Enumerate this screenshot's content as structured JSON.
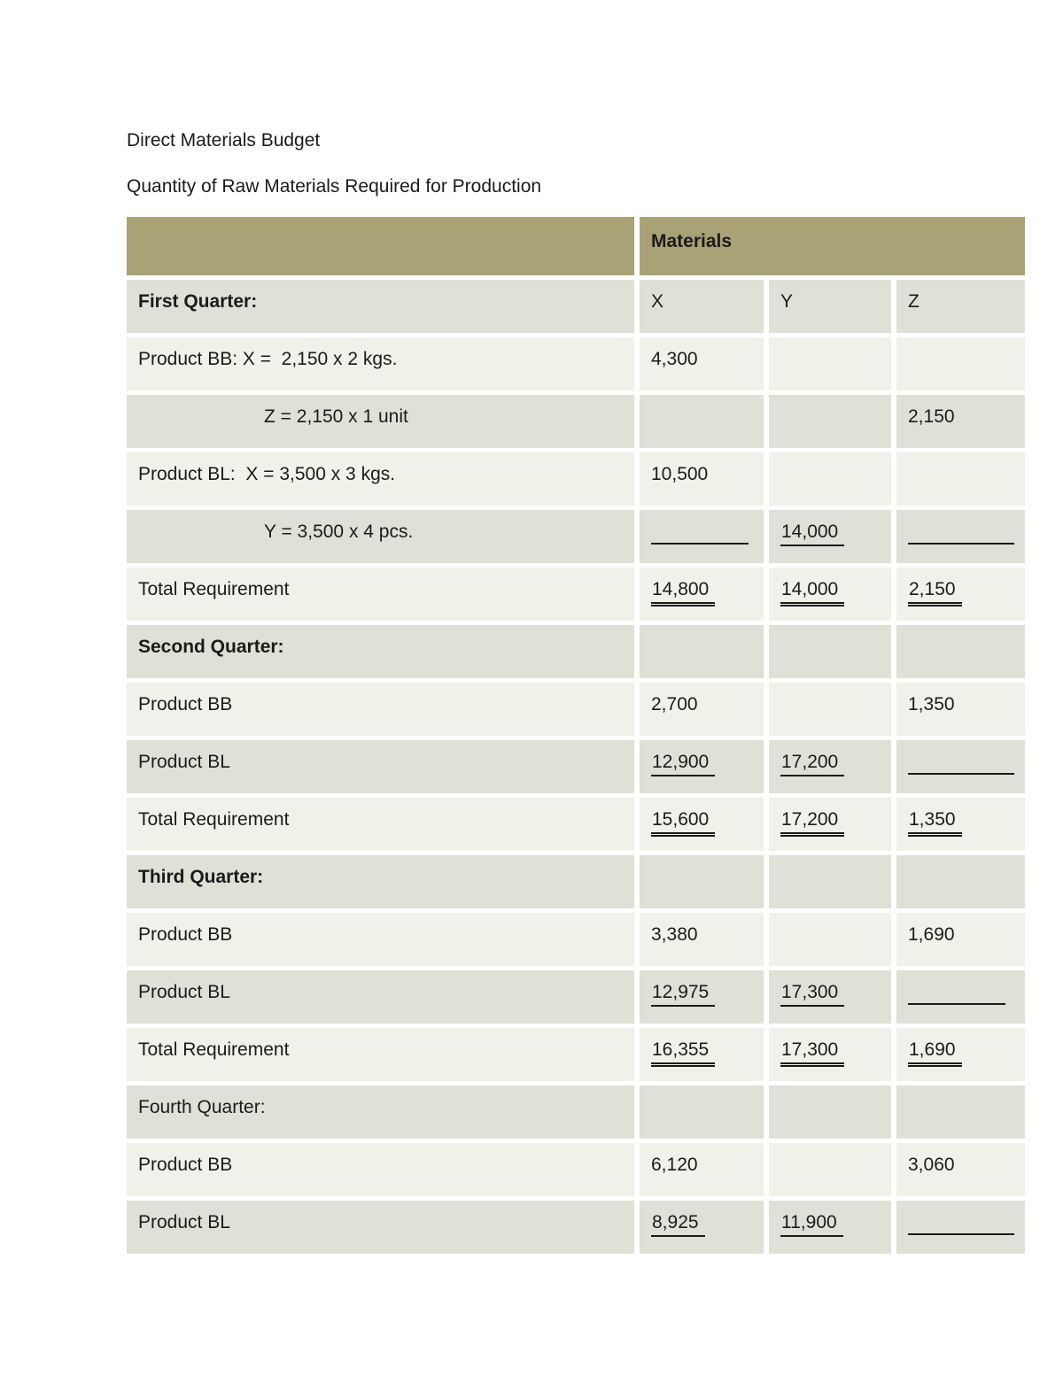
{
  "doc": {
    "title": "Direct Materials Budget",
    "subtitle": "Quantity of Raw Materials Required for Production"
  },
  "table": {
    "materials_header": "Materials",
    "rows": [
      {
        "label": "First Quarter:",
        "x": "X",
        "y": "Y",
        "z": "Z"
      },
      {
        "label": "Product BB: X =  2,150 x 2 kgs.",
        "x": "4,300"
      },
      {
        "label": "Z = 2,150 x 1 unit",
        "z": "2,150"
      },
      {
        "label": "Product BL:  X = 3,500 x 3 kgs.",
        "x": "10,500"
      },
      {
        "label": "Y = 3,500 x 4 pcs.",
        "y": "14,000"
      },
      {
        "label": "Total Requirement",
        "x": "14,800",
        "y": "14,000",
        "z": "2,150"
      },
      {
        "label": "Second Quarter:"
      },
      {
        "label": "Product BB",
        "x": "2,700",
        "z": "1,350"
      },
      {
        "label": "Product BL",
        "x": "12,900",
        "y": "17,200"
      },
      {
        "label": "Total Requirement",
        "x": "15,600",
        "y": "17,200",
        "z": "1,350"
      },
      {
        "label": "Third Quarter:"
      },
      {
        "label": "Product BB",
        "x": "3,380",
        "z": "1,690"
      },
      {
        "label": "Product BL",
        "x": "12,975",
        "y": "17,300"
      },
      {
        "label": "Total Requirement",
        "x": "16,355",
        "y": "17,300",
        "z": "1,690"
      },
      {
        "label": "Fourth Quarter:"
      },
      {
        "label": "Product BB",
        "x": "6,120",
        "z": "3,060"
      },
      {
        "label": "Product BL",
        "x": "8,925",
        "y": "11,900"
      }
    ]
  },
  "theme": {
    "header_olive": "#a9a277",
    "row_dark": "#e1e0d6",
    "row_light": "#f1f0e9",
    "text_color": "#1b1b1b"
  }
}
